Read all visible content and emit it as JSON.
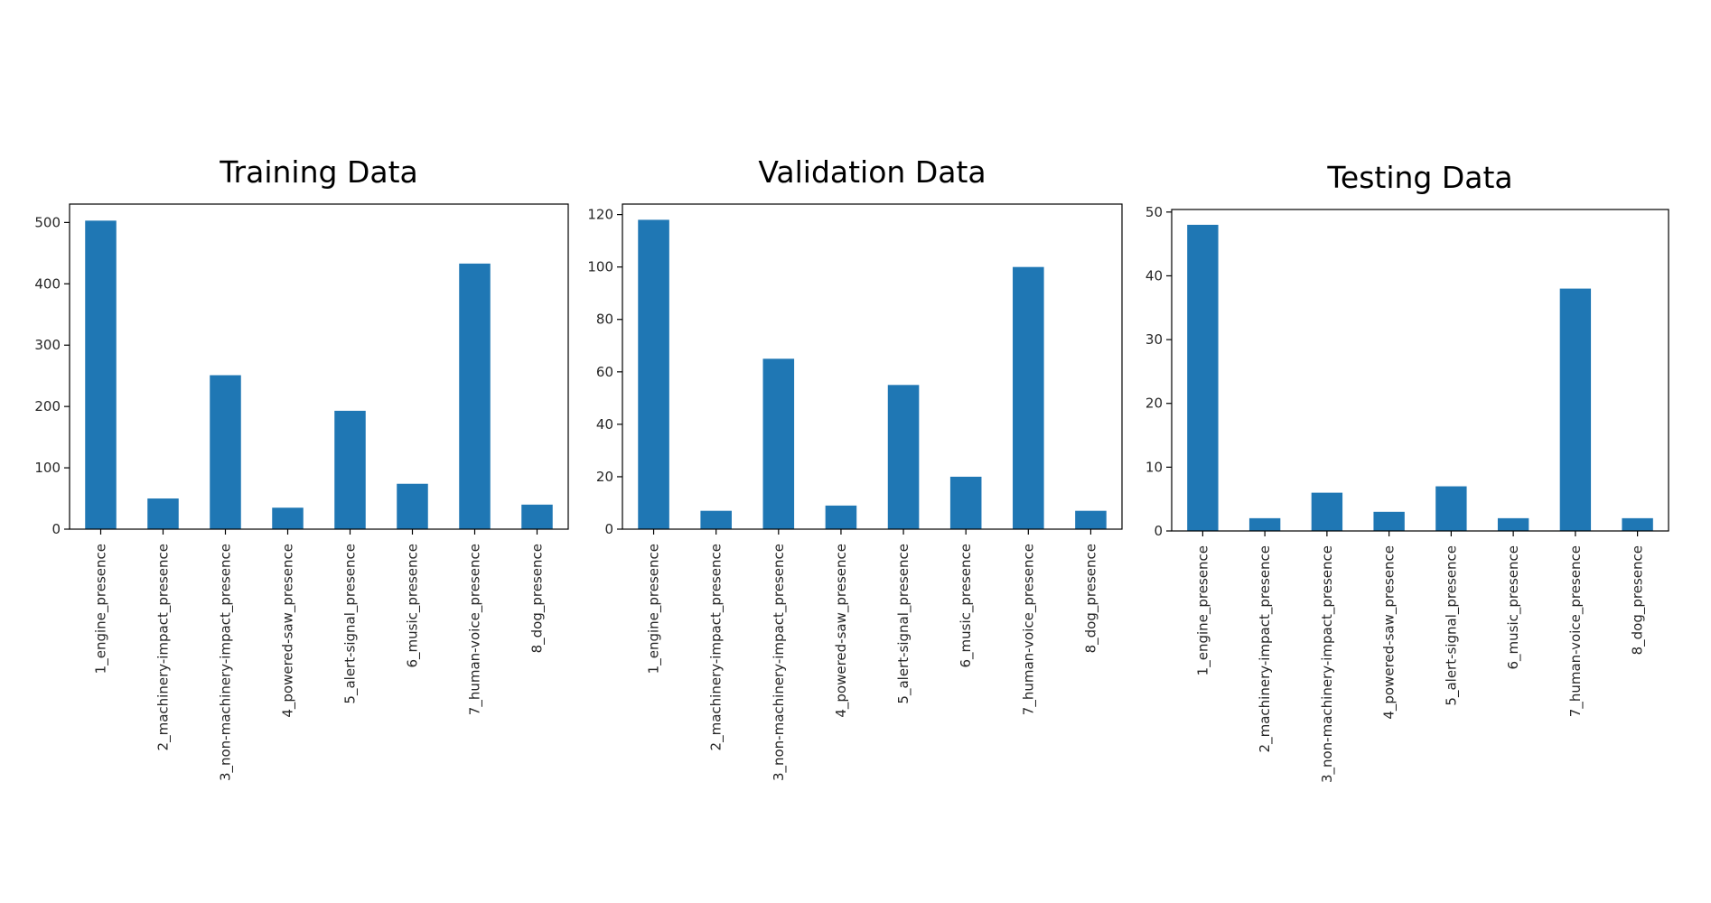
{
  "bar_color": "#1f77b4",
  "chart_data": [
    {
      "type": "bar",
      "title": "Training Data",
      "categories": [
        "1_engine_presence",
        "2_machinery-impact_presence",
        "3_non-machinery-impact_presence",
        "4_powered-saw_presence",
        "5_alert-signal_presence",
        "6_music_presence",
        "7_human-voice_presence",
        "8_dog_presence"
      ],
      "values": [
        503,
        50,
        251,
        35,
        193,
        74,
        433,
        40
      ],
      "ylim": [
        0,
        530
      ],
      "yticks": [
        0,
        100,
        200,
        300,
        400,
        500
      ],
      "grid": false
    },
    {
      "type": "bar",
      "title": "Validation Data",
      "categories": [
        "1_engine_presence",
        "2_machinery-impact_presence",
        "3_non-machinery-impact_presence",
        "4_powered-saw_presence",
        "5_alert-signal_presence",
        "6_music_presence",
        "7_human-voice_presence",
        "8_dog_presence"
      ],
      "values": [
        118,
        7,
        65,
        9,
        55,
        20,
        100,
        7
      ],
      "ylim": [
        0,
        124
      ],
      "yticks": [
        0,
        20,
        40,
        60,
        80,
        100,
        120
      ],
      "grid": false
    },
    {
      "type": "bar",
      "title": "Testing Data",
      "categories": [
        "1_engine_presence",
        "2_machinery-impact_presence",
        "3_non-machinery-impact_presence",
        "4_powered-saw_presence",
        "5_alert-signal_presence",
        "6_music_presence",
        "7_human-voice_presence",
        "8_dog_presence"
      ],
      "values": [
        48,
        2,
        6,
        3,
        7,
        2,
        38,
        2
      ],
      "ylim": [
        0,
        50.4
      ],
      "yticks": [
        0,
        10,
        20,
        30,
        40,
        50
      ],
      "grid": false
    }
  ]
}
